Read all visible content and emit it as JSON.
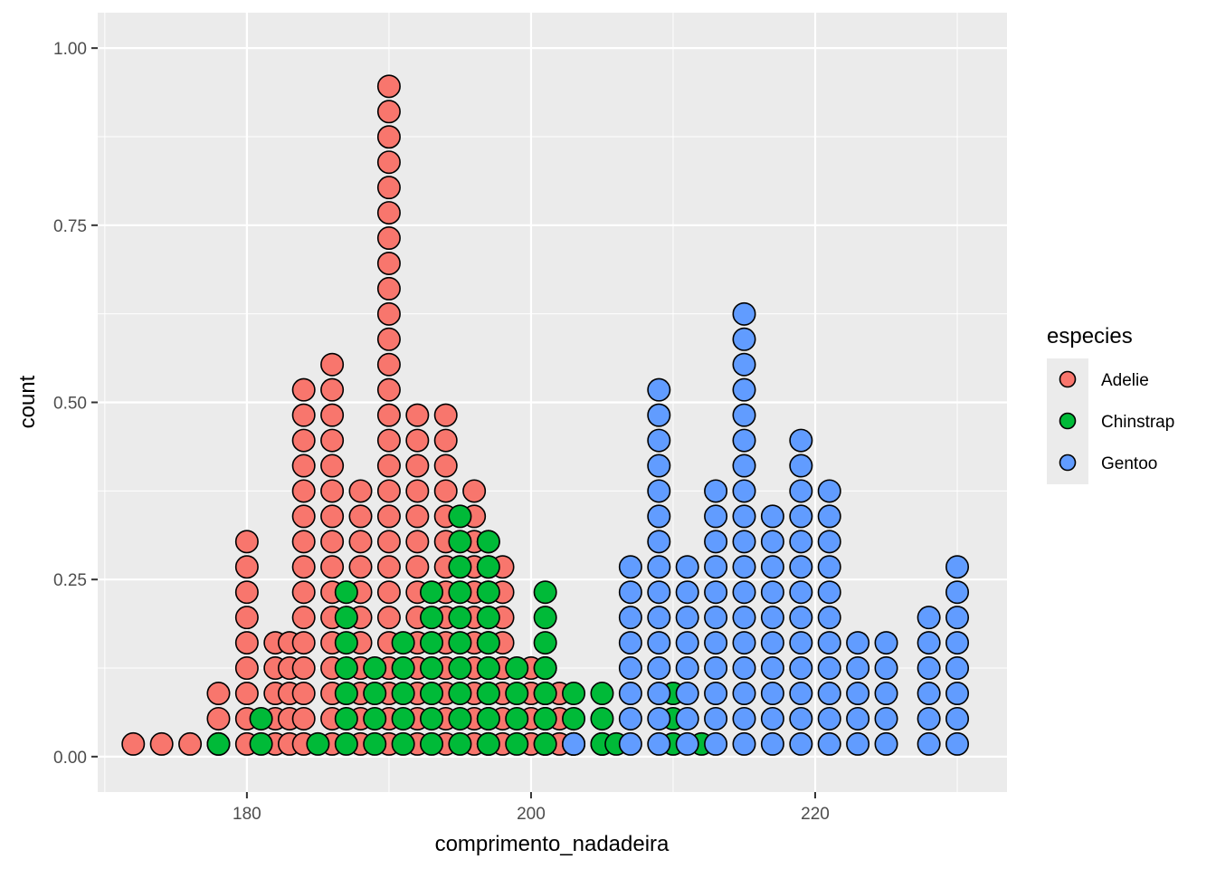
{
  "chart_data": {
    "type": "dotplot",
    "xlabel": "comprimento_nadadeira",
    "ylabel": "count",
    "xlim": [
      169.5,
      233.5
    ],
    "ylim": [
      -0.05,
      1.05
    ],
    "x_ticks": [
      180,
      200,
      220
    ],
    "x_tick_labels": [
      "180",
      "200",
      "220"
    ],
    "y_ticks": [
      0,
      0.25,
      0.5,
      0.75,
      1.0
    ],
    "y_tick_labels": [
      "0.00",
      "0.25",
      "0.50",
      "0.75",
      "1.00"
    ],
    "grid": true,
    "dot_step": 0.0357,
    "legend": {
      "title": "especies",
      "position": "right",
      "entries": [
        "Adelie",
        "Chinstrap",
        "Gentoo"
      ]
    },
    "series": [
      {
        "name": "Adelie",
        "color": "#F8766D",
        "stacks": [
          [
            172,
            1
          ],
          [
            174,
            1
          ],
          [
            176,
            1
          ],
          [
            178,
            3
          ],
          [
            180,
            9
          ],
          [
            182,
            5
          ],
          [
            183,
            5
          ],
          [
            184,
            15
          ],
          [
            186,
            16
          ],
          [
            188,
            11
          ],
          [
            190,
            27
          ],
          [
            192,
            14
          ],
          [
            194,
            14
          ],
          [
            196,
            11
          ],
          [
            197,
            9
          ],
          [
            198,
            8
          ],
          [
            200,
            4
          ],
          [
            201,
            4
          ],
          [
            202,
            3
          ],
          [
            203,
            1
          ],
          [
            205,
            1
          ]
        ]
      },
      {
        "name": "Chinstrap",
        "color": "#00BA38",
        "stacks": [
          [
            178,
            1
          ],
          [
            181,
            2
          ],
          [
            185,
            1
          ],
          [
            187,
            7
          ],
          [
            189,
            4
          ],
          [
            191,
            5
          ],
          [
            193,
            7
          ],
          [
            195,
            10
          ],
          [
            197,
            9
          ],
          [
            199,
            4
          ],
          [
            201,
            7
          ],
          [
            203,
            3
          ],
          [
            205,
            3
          ],
          [
            206,
            1
          ],
          [
            210,
            3
          ],
          [
            212,
            1
          ]
        ]
      },
      {
        "name": "Gentoo",
        "color": "#619CFF",
        "stacks": [
          [
            203,
            1
          ],
          [
            207,
            8
          ],
          [
            209,
            15
          ],
          [
            211,
            8
          ],
          [
            213,
            11
          ],
          [
            215,
            18
          ],
          [
            217,
            10
          ],
          [
            219,
            13
          ],
          [
            221,
            11
          ],
          [
            223,
            5
          ],
          [
            225,
            5
          ],
          [
            228,
            6
          ],
          [
            230,
            8
          ]
        ]
      }
    ]
  }
}
